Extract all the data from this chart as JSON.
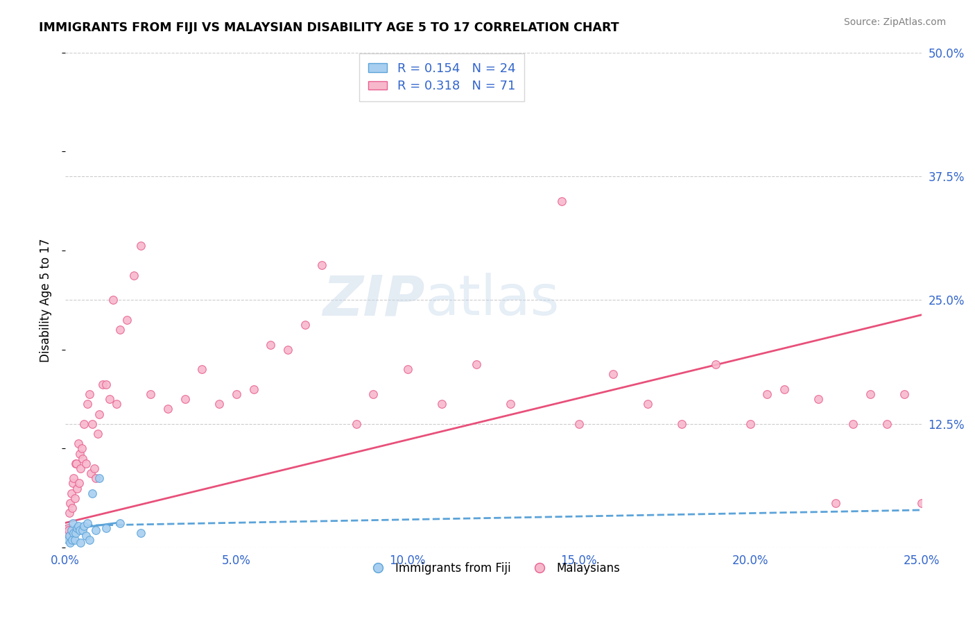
{
  "title": "IMMIGRANTS FROM FIJI VS MALAYSIAN DISABILITY AGE 5 TO 17 CORRELATION CHART",
  "source": "Source: ZipAtlas.com",
  "ylabel": "Disability Age 5 to 17",
  "xticklabels": [
    "0.0%",
    "5.0%",
    "10.0%",
    "15.0%",
    "20.0%",
    "25.0%"
  ],
  "xticks": [
    0.0,
    5.0,
    10.0,
    15.0,
    20.0,
    25.0
  ],
  "right_yticks": [
    0.0,
    12.5,
    25.0,
    37.5,
    50.0
  ],
  "right_yticklabels": [
    "",
    "12.5%",
    "25.0%",
    "37.5%",
    "50.0%"
  ],
  "xlim": [
    0.0,
    25.0
  ],
  "ylim": [
    0.0,
    50.0
  ],
  "fiji_color": "#a8cff0",
  "fiji_edge_color": "#5ba3d9",
  "malay_color": "#f7b8cc",
  "malay_edge_color": "#e86090",
  "trend_fiji_color": "#5ba3d9",
  "trend_malay_color": "#e8507a",
  "legend_fiji_label": "R = 0.154   N = 24",
  "legend_malay_label": "R = 0.318   N = 71",
  "legend_text_color": "#3366cc",
  "fiji_x": [
    0.08,
    0.12,
    0.15,
    0.18,
    0.2,
    0.22,
    0.25,
    0.28,
    0.3,
    0.35,
    0.38,
    0.42,
    0.45,
    0.5,
    0.55,
    0.6,
    0.65,
    0.7,
    0.8,
    0.9,
    1.0,
    1.2,
    1.6,
    2.2
  ],
  "fiji_y": [
    0.8,
    1.2,
    0.5,
    1.8,
    0.8,
    2.5,
    1.5,
    0.8,
    1.5,
    2.0,
    2.2,
    1.8,
    0.5,
    1.8,
    2.2,
    1.2,
    2.5,
    0.8,
    5.5,
    1.8,
    7.0,
    2.0,
    2.5,
    1.5
  ],
  "malay_x": [
    0.05,
    0.08,
    0.1,
    0.12,
    0.15,
    0.18,
    0.2,
    0.22,
    0.25,
    0.28,
    0.3,
    0.32,
    0.35,
    0.38,
    0.4,
    0.42,
    0.45,
    0.48,
    0.5,
    0.55,
    0.6,
    0.65,
    0.7,
    0.75,
    0.8,
    0.85,
    0.9,
    0.95,
    1.0,
    1.1,
    1.2,
    1.3,
    1.4,
    1.5,
    1.6,
    1.8,
    2.0,
    2.2,
    2.5,
    3.0,
    3.5,
    4.0,
    4.5,
    5.0,
    5.5,
    6.0,
    6.5,
    7.0,
    7.5,
    8.5,
    9.0,
    10.0,
    11.0,
    12.0,
    13.0,
    14.5,
    15.0,
    16.0,
    17.0,
    18.0,
    19.0,
    20.0,
    21.0,
    22.0,
    23.0,
    23.5,
    24.0,
    24.5,
    25.0,
    20.5,
    22.5
  ],
  "malay_y": [
    1.5,
    2.0,
    1.8,
    3.5,
    4.5,
    5.5,
    4.0,
    6.5,
    7.0,
    5.0,
    8.5,
    8.5,
    6.0,
    10.5,
    6.5,
    9.5,
    8.0,
    10.0,
    9.0,
    12.5,
    8.5,
    14.5,
    15.5,
    7.5,
    12.5,
    8.0,
    7.0,
    11.5,
    13.5,
    16.5,
    16.5,
    15.0,
    25.0,
    14.5,
    22.0,
    23.0,
    27.5,
    30.5,
    15.5,
    14.0,
    15.0,
    18.0,
    14.5,
    15.5,
    16.0,
    20.5,
    20.0,
    22.5,
    28.5,
    12.5,
    15.5,
    18.0,
    14.5,
    18.5,
    14.5,
    35.0,
    12.5,
    17.5,
    14.5,
    12.5,
    18.5,
    12.5,
    16.0,
    15.0,
    12.5,
    15.5,
    12.5,
    15.5,
    4.5,
    15.5,
    4.5
  ],
  "trend_fiji_start_y": 2.2,
  "trend_fiji_end_y": 3.8,
  "trend_malay_start_y": 2.5,
  "trend_malay_end_y": 23.5
}
